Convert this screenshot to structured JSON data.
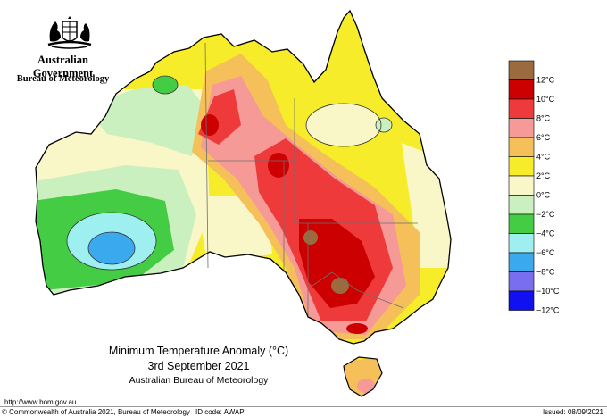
{
  "header": {
    "government": "Australian Government",
    "bureau": "Bureau of Meteorology"
  },
  "map": {
    "title": "Minimum Temperature Anomaly (°C)",
    "date": "3rd September 2021",
    "source": "Australian Bureau of Meteorology",
    "colors": {
      "ocean": "#ffffff",
      "land_outline": "#000000",
      "state_border": "#6f6f6f",
      "contour": "#333333"
    }
  },
  "legend": {
    "items": [
      {
        "label": "12°C",
        "color": "#9b6a3e"
      },
      {
        "label": "10°C",
        "color": "#cc0000"
      },
      {
        "label": "8°C",
        "color": "#ee3a3a"
      },
      {
        "label": "6°C",
        "color": "#f59a96"
      },
      {
        "label": "4°C",
        "color": "#f5c05a"
      },
      {
        "label": "2°C",
        "color": "#f7ec2a"
      },
      {
        "label": "0°C",
        "color": "#f9f6c8"
      },
      {
        "label": "−2°C",
        "color": "#caf0c0"
      },
      {
        "label": "−4°C",
        "color": "#44cc44"
      },
      {
        "label": "−6°C",
        "color": "#9ef0f0"
      },
      {
        "label": "−8°C",
        "color": "#3aa9ee"
      },
      {
        "label": "−10°C",
        "color": "#7a6ef0"
      },
      {
        "label": "−12°C",
        "color": "#1010f0"
      }
    ]
  },
  "footer": {
    "url": "http://www.bom.gov.au",
    "copyright": "© Commonwealth of Australia 2021, Bureau of Meteorology",
    "id_code": "ID code: AWAP",
    "issued": "Issued: 08/09/2021"
  }
}
